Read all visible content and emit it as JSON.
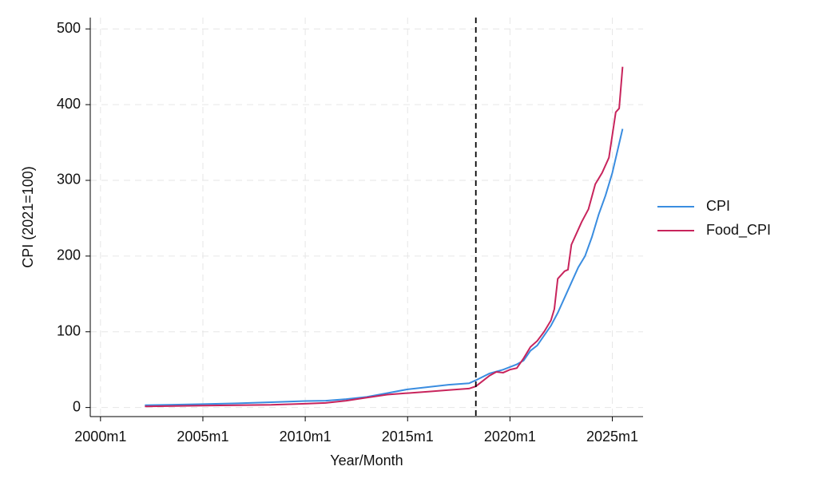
{
  "chart_data": {
    "type": "line",
    "x_label": "Year/Month",
    "y_label": "CPI (2021=100)",
    "xlim": [
      474,
      798
    ],
    "ylim": [
      -12,
      515
    ],
    "xticks": [
      {
        "value": 480,
        "label": "2000m1"
      },
      {
        "value": 540,
        "label": "2005m1"
      },
      {
        "value": 600,
        "label": "2010m1"
      },
      {
        "value": 660,
        "label": "2015m1"
      },
      {
        "value": 720,
        "label": "2020m1"
      },
      {
        "value": 780,
        "label": "2025m1"
      }
    ],
    "yticks": [
      0,
      100,
      200,
      300,
      400,
      500
    ],
    "grid": true,
    "legend": "right",
    "vline": 700,
    "series": [
      {
        "name": "CPI",
        "color": "#3a8de0",
        "x": [
          506,
          520,
          540,
          560,
          580,
          600,
          612,
          624,
          636,
          648,
          660,
          672,
          684,
          696,
          700,
          708,
          716,
          724,
          728,
          732,
          736,
          740,
          744,
          748,
          752,
          756,
          760,
          764,
          768,
          772,
          776,
          780,
          786
        ],
        "values": [
          3,
          3.5,
          4.5,
          5.5,
          7,
          8.5,
          9,
          11,
          14,
          19,
          24,
          27,
          30,
          32,
          36,
          45,
          50,
          57,
          62,
          75,
          82,
          95,
          108,
          125,
          145,
          165,
          185,
          200,
          225,
          255,
          280,
          310,
          368
        ]
      },
      {
        "name": "Food_CPI",
        "color": "#c8245c",
        "x": [
          506,
          540,
          580,
          600,
          612,
          624,
          636,
          648,
          660,
          672,
          684,
          696,
          700,
          708,
          712,
          716,
          720,
          724,
          728,
          732,
          736,
          740,
          744,
          746,
          748,
          752,
          754,
          756,
          760,
          762,
          766,
          770,
          774,
          778,
          782,
          784,
          786
        ],
        "values": [
          1.5,
          2.5,
          3.5,
          5,
          6,
          9,
          13,
          17,
          19,
          21,
          23,
          25,
          28,
          42,
          47,
          46,
          50,
          52,
          65,
          80,
          88,
          100,
          115,
          130,
          170,
          180,
          182,
          215,
          235,
          245,
          262,
          295,
          310,
          330,
          390,
          395,
          450
        ]
      }
    ]
  }
}
